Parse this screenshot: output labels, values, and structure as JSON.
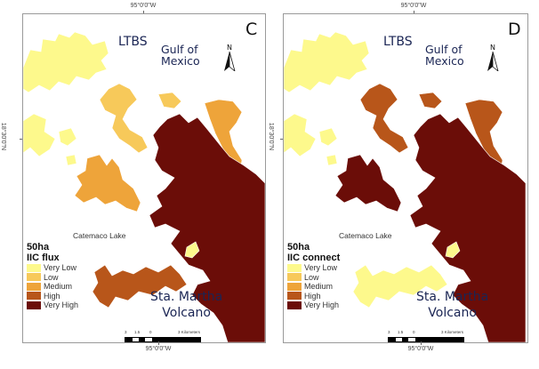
{
  "colors": {
    "very_low": "#fdf98c",
    "low": "#f7c95a",
    "medium": "#eea43a",
    "high": "#b8561a",
    "very_high": "#6b0d08",
    "frame": "#9a9a9a",
    "label_text": "#1a2554"
  },
  "panels": [
    {
      "letter": "C",
      "coord_top": "95°0'0\"W",
      "coord_bottom": "95°0'0\"W",
      "coord_left": "18°30'0\"N",
      "coord_right": "",
      "labels": {
        "ltbs": "LTBS",
        "gulf_line1": "Gulf of",
        "gulf_line2": "Mexico",
        "lake": "Catemaco Lake",
        "volcano_line1": "Sta. Martha",
        "volcano_line2": "Volcano"
      },
      "north_label": "N",
      "legend": {
        "title_line1": "50ha",
        "title_line2": "IIC flux",
        "items": [
          {
            "label": "Very Low",
            "class": "very_low"
          },
          {
            "label": "Low",
            "class": "low"
          },
          {
            "label": "Medium",
            "class": "medium"
          },
          {
            "label": "High",
            "class": "high"
          },
          {
            "label": "Very High",
            "class": "very_high"
          }
        ]
      },
      "scale": {
        "ticks": [
          "3",
          "1.5",
          "0",
          "3 Kilometers"
        ]
      },
      "patch_classes": {
        "northwest": "very_low",
        "west_small": "very_low",
        "central_north": "low",
        "central_west": "medium",
        "northeast_strip": "medium",
        "southwest": "high",
        "east_mass": "very_high",
        "lake_island": "very_low"
      }
    },
    {
      "letter": "D",
      "coord_top": "95°0'0\"W",
      "coord_bottom": "95°0'0\"W",
      "coord_left": "18°30'0\"N",
      "coord_right": "",
      "labels": {
        "ltbs": "LTBS",
        "gulf_line1": "Gulf of",
        "gulf_line2": "Mexico",
        "lake": "Catemaco Lake",
        "volcano_line1": "Sta. Martha",
        "volcano_line2": "Volcano"
      },
      "north_label": "N",
      "legend": {
        "title_line1": "50ha",
        "title_line2": "IIC connect",
        "items": [
          {
            "label": "Very Low",
            "class": "very_low"
          },
          {
            "label": "Low",
            "class": "low"
          },
          {
            "label": "Medium",
            "class": "medium"
          },
          {
            "label": "High",
            "class": "high"
          },
          {
            "label": "Very High",
            "class": "very_high"
          }
        ]
      },
      "scale": {
        "ticks": [
          "3",
          "1.5",
          "0",
          "3 Kilometers"
        ]
      },
      "patch_classes": {
        "northwest": "very_low",
        "west_small": "very_low",
        "central_north": "high",
        "central_west": "very_high",
        "northeast_strip": "high",
        "southwest": "very_low",
        "east_mass": "very_high",
        "lake_island": "very_low"
      }
    }
  ]
}
